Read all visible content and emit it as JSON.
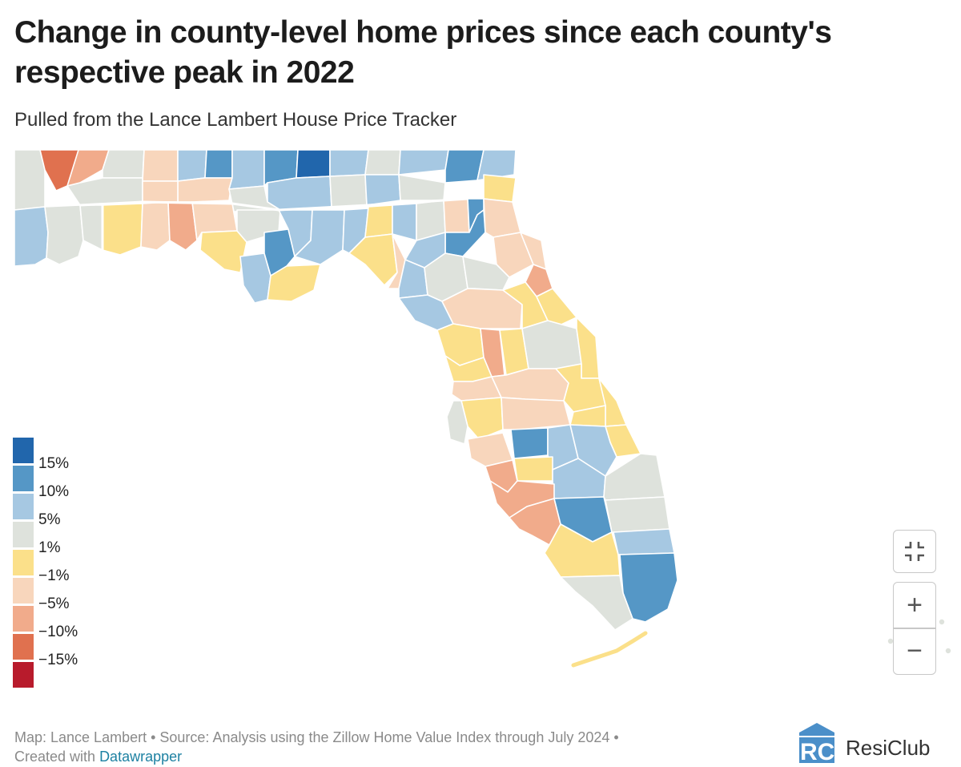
{
  "header": {
    "title": "Change in county-level home prices since each county's respective peak in 2022",
    "subtitle": "Pulled from the Lance Lambert House Price Tracker"
  },
  "legend": {
    "items": [
      {
        "label": "15%",
        "color": "#2166ac"
      },
      {
        "label": "10%",
        "color": "#5597c6"
      },
      {
        "label": "5%",
        "color": "#a6c8e2"
      },
      {
        "label": "1%",
        "color": "#dee2dc"
      },
      {
        "label": "−1%",
        "color": "#fbe08a"
      },
      {
        "label": "−5%",
        "color": "#f8d6bc"
      },
      {
        "label": "−10%",
        "color": "#f1ab8b"
      },
      {
        "label": "−15%",
        "color": "#e0714f"
      },
      {
        "label": "",
        "color": "#b81b2c"
      }
    ]
  },
  "palette": {
    "p15": "#2166ac",
    "p10": "#5597c6",
    "p5": "#a6c8e2",
    "p1": "#dee2dc",
    "n1": "#fbe08a",
    "n5": "#f8d6bc",
    "n10": "#f1ab8b",
    "n15": "#e0714f",
    "n20": "#b81b2c"
  },
  "controls": {
    "fullscreen_icon": "compress-icon",
    "zoom_in": "+",
    "zoom_out": "−"
  },
  "footer": {
    "line1": "Map: Lance Lambert • Source: Analysis using the Zillow Home Value Index through July 2024 •",
    "created_prefix": "Created with ",
    "created_link": "Datawrapper"
  },
  "brand": {
    "name": "ResiClub",
    "logo_letters": "RC"
  }
}
